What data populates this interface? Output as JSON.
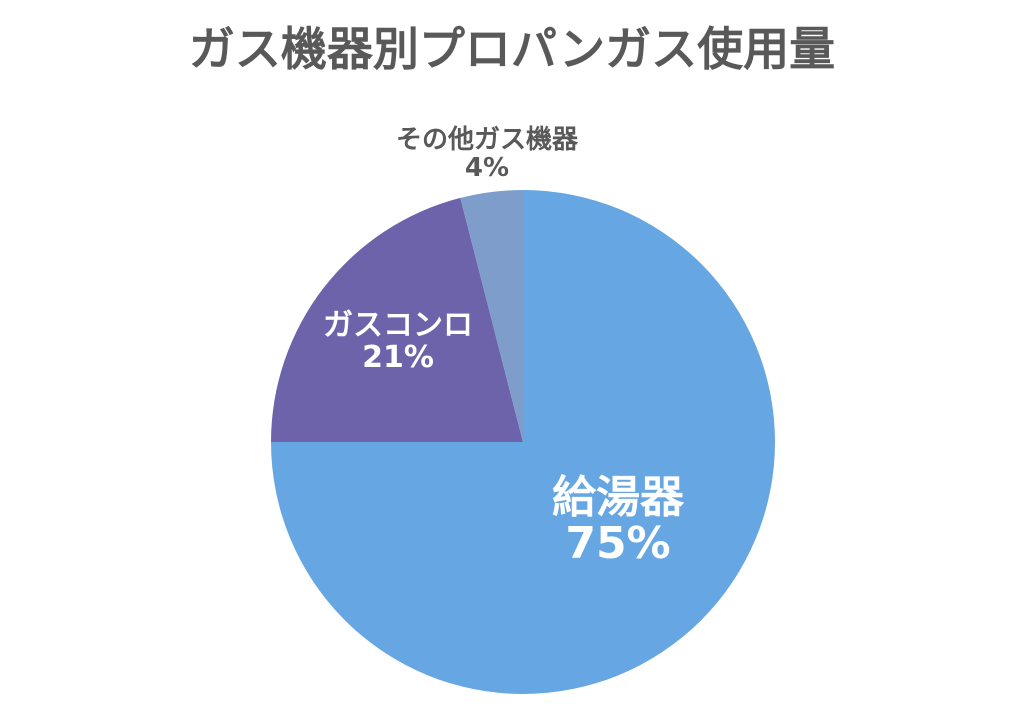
{
  "chart_data": {
    "type": "pie",
    "title": "ガス機器別プロパンガス使用量",
    "start_angle_deg": 0,
    "direction": "clockwise",
    "slices": [
      {
        "name": "給湯器",
        "value": 75,
        "label": "75%",
        "color": "#66a6e2",
        "label_color": "#ffffff"
      },
      {
        "name": "ガスコンロ",
        "value": 21,
        "label": "21%",
        "color": "#6c63ab",
        "label_color": "#ffffff"
      },
      {
        "name": "その他ガス機器",
        "value": 4,
        "label": "4%",
        "color": "#7f9dca",
        "label_color": "#595959"
      }
    ]
  }
}
